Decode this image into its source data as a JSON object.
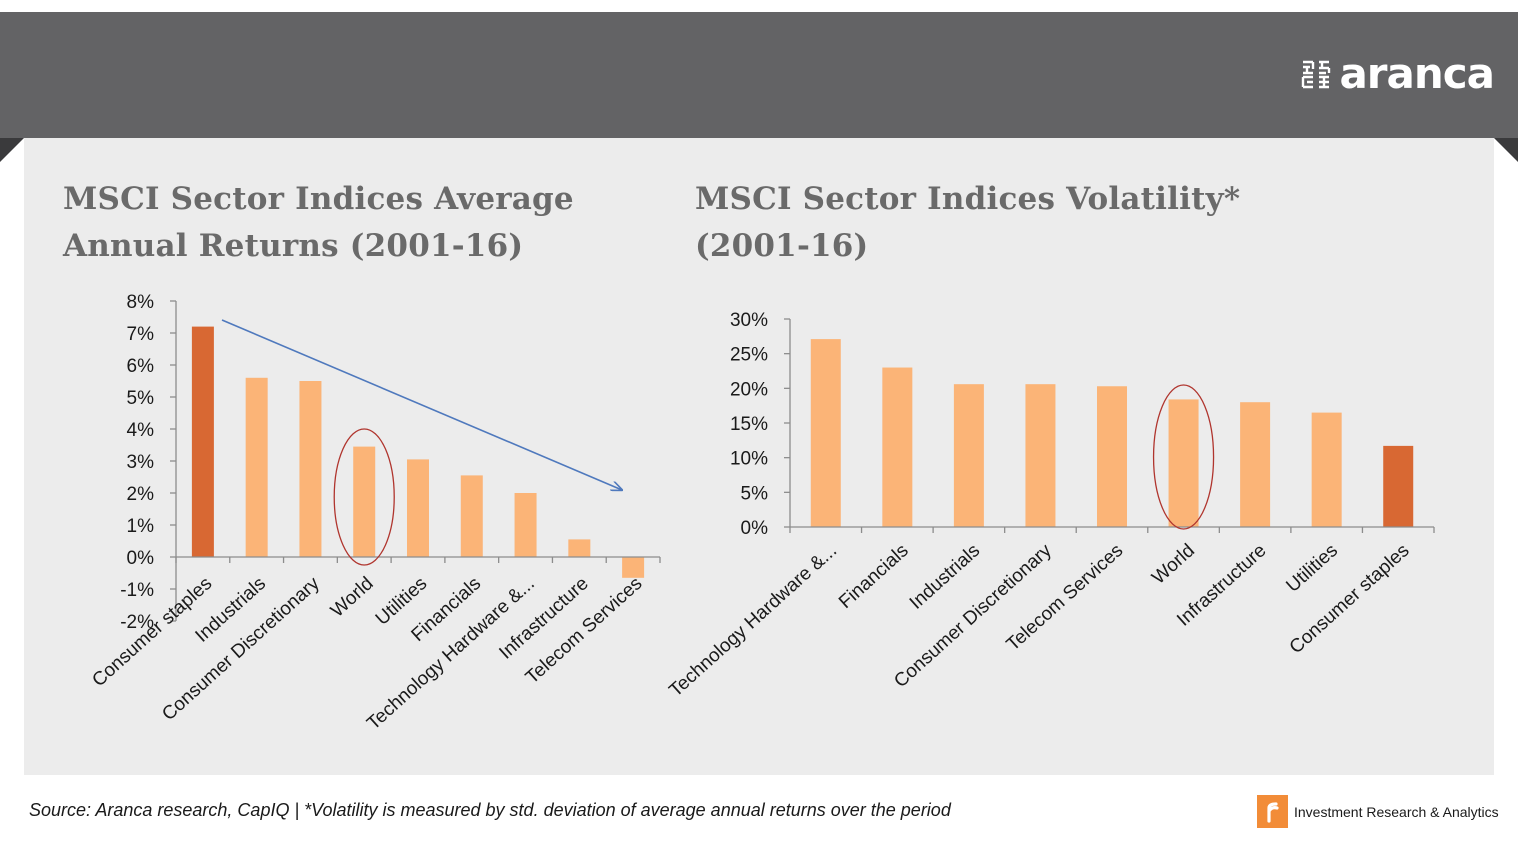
{
  "brand": {
    "name": "aranca",
    "icon": "aranca-maze-icon",
    "tagline": "Investment  Research & Analytics",
    "tagline_icon": "aranca-orange-r-icon"
  },
  "colors": {
    "banner": "#636365",
    "panel": "#ececec",
    "bar": "#fbb477",
    "bar_highlight": "#d86833",
    "trend_arrow": "#4f79bd",
    "circle": "#b0352e",
    "title": "#6a6a6a"
  },
  "source": "Source: Aranca research, CapIQ | *Volatility is measured by std. deviation of average annual returns over the period",
  "chart_data": [
    {
      "type": "bar",
      "title": "MSCI Sector Indices Average Annual Returns (2001-16)",
      "categories": [
        "Consumer staples",
        "Industrials",
        "Consumer Discretionary",
        "World",
        "Utilities",
        "Financials",
        "Technology Hardware &...",
        "Infrastructure",
        "Telecom Services"
      ],
      "values": [
        7.2,
        5.6,
        5.5,
        3.45,
        3.05,
        2.55,
        2.0,
        0.55,
        -0.65
      ],
      "unit": "%",
      "highlight_index": 0,
      "circled_category": "World",
      "annotation": "downward trend arrow",
      "ylim": [
        -2,
        8
      ],
      "yticks": [
        8,
        7,
        6,
        5,
        4,
        3,
        2,
        1,
        0,
        -1,
        -2
      ],
      "ytick_labels": [
        "8%",
        "7%",
        "6%",
        "5%",
        "4%",
        "3%",
        "2%",
        "1%",
        "0%",
        "-1%",
        "-2%"
      ],
      "xlabel": "",
      "ylabel": ""
    },
    {
      "type": "bar",
      "title": "MSCI Sector Indices Volatility* (2001-16)",
      "categories": [
        "Technology Hardware &...",
        "Financials",
        "Industrials",
        "Consumer Discretionary",
        "Telecom Services",
        "World",
        "Infrastructure",
        "Utilities",
        "Consumer staples"
      ],
      "values": [
        27.1,
        23.0,
        20.6,
        20.6,
        20.3,
        18.4,
        18.0,
        16.5,
        11.7
      ],
      "unit": "%",
      "highlight_index": 8,
      "circled_category": "World",
      "ylim": [
        0,
        30
      ],
      "yticks": [
        30,
        25,
        20,
        15,
        10,
        5,
        0
      ],
      "ytick_labels": [
        "30%",
        "25%",
        "20%",
        "15%",
        "10%",
        "5%",
        "0%"
      ],
      "xlabel": "",
      "ylabel": ""
    }
  ]
}
